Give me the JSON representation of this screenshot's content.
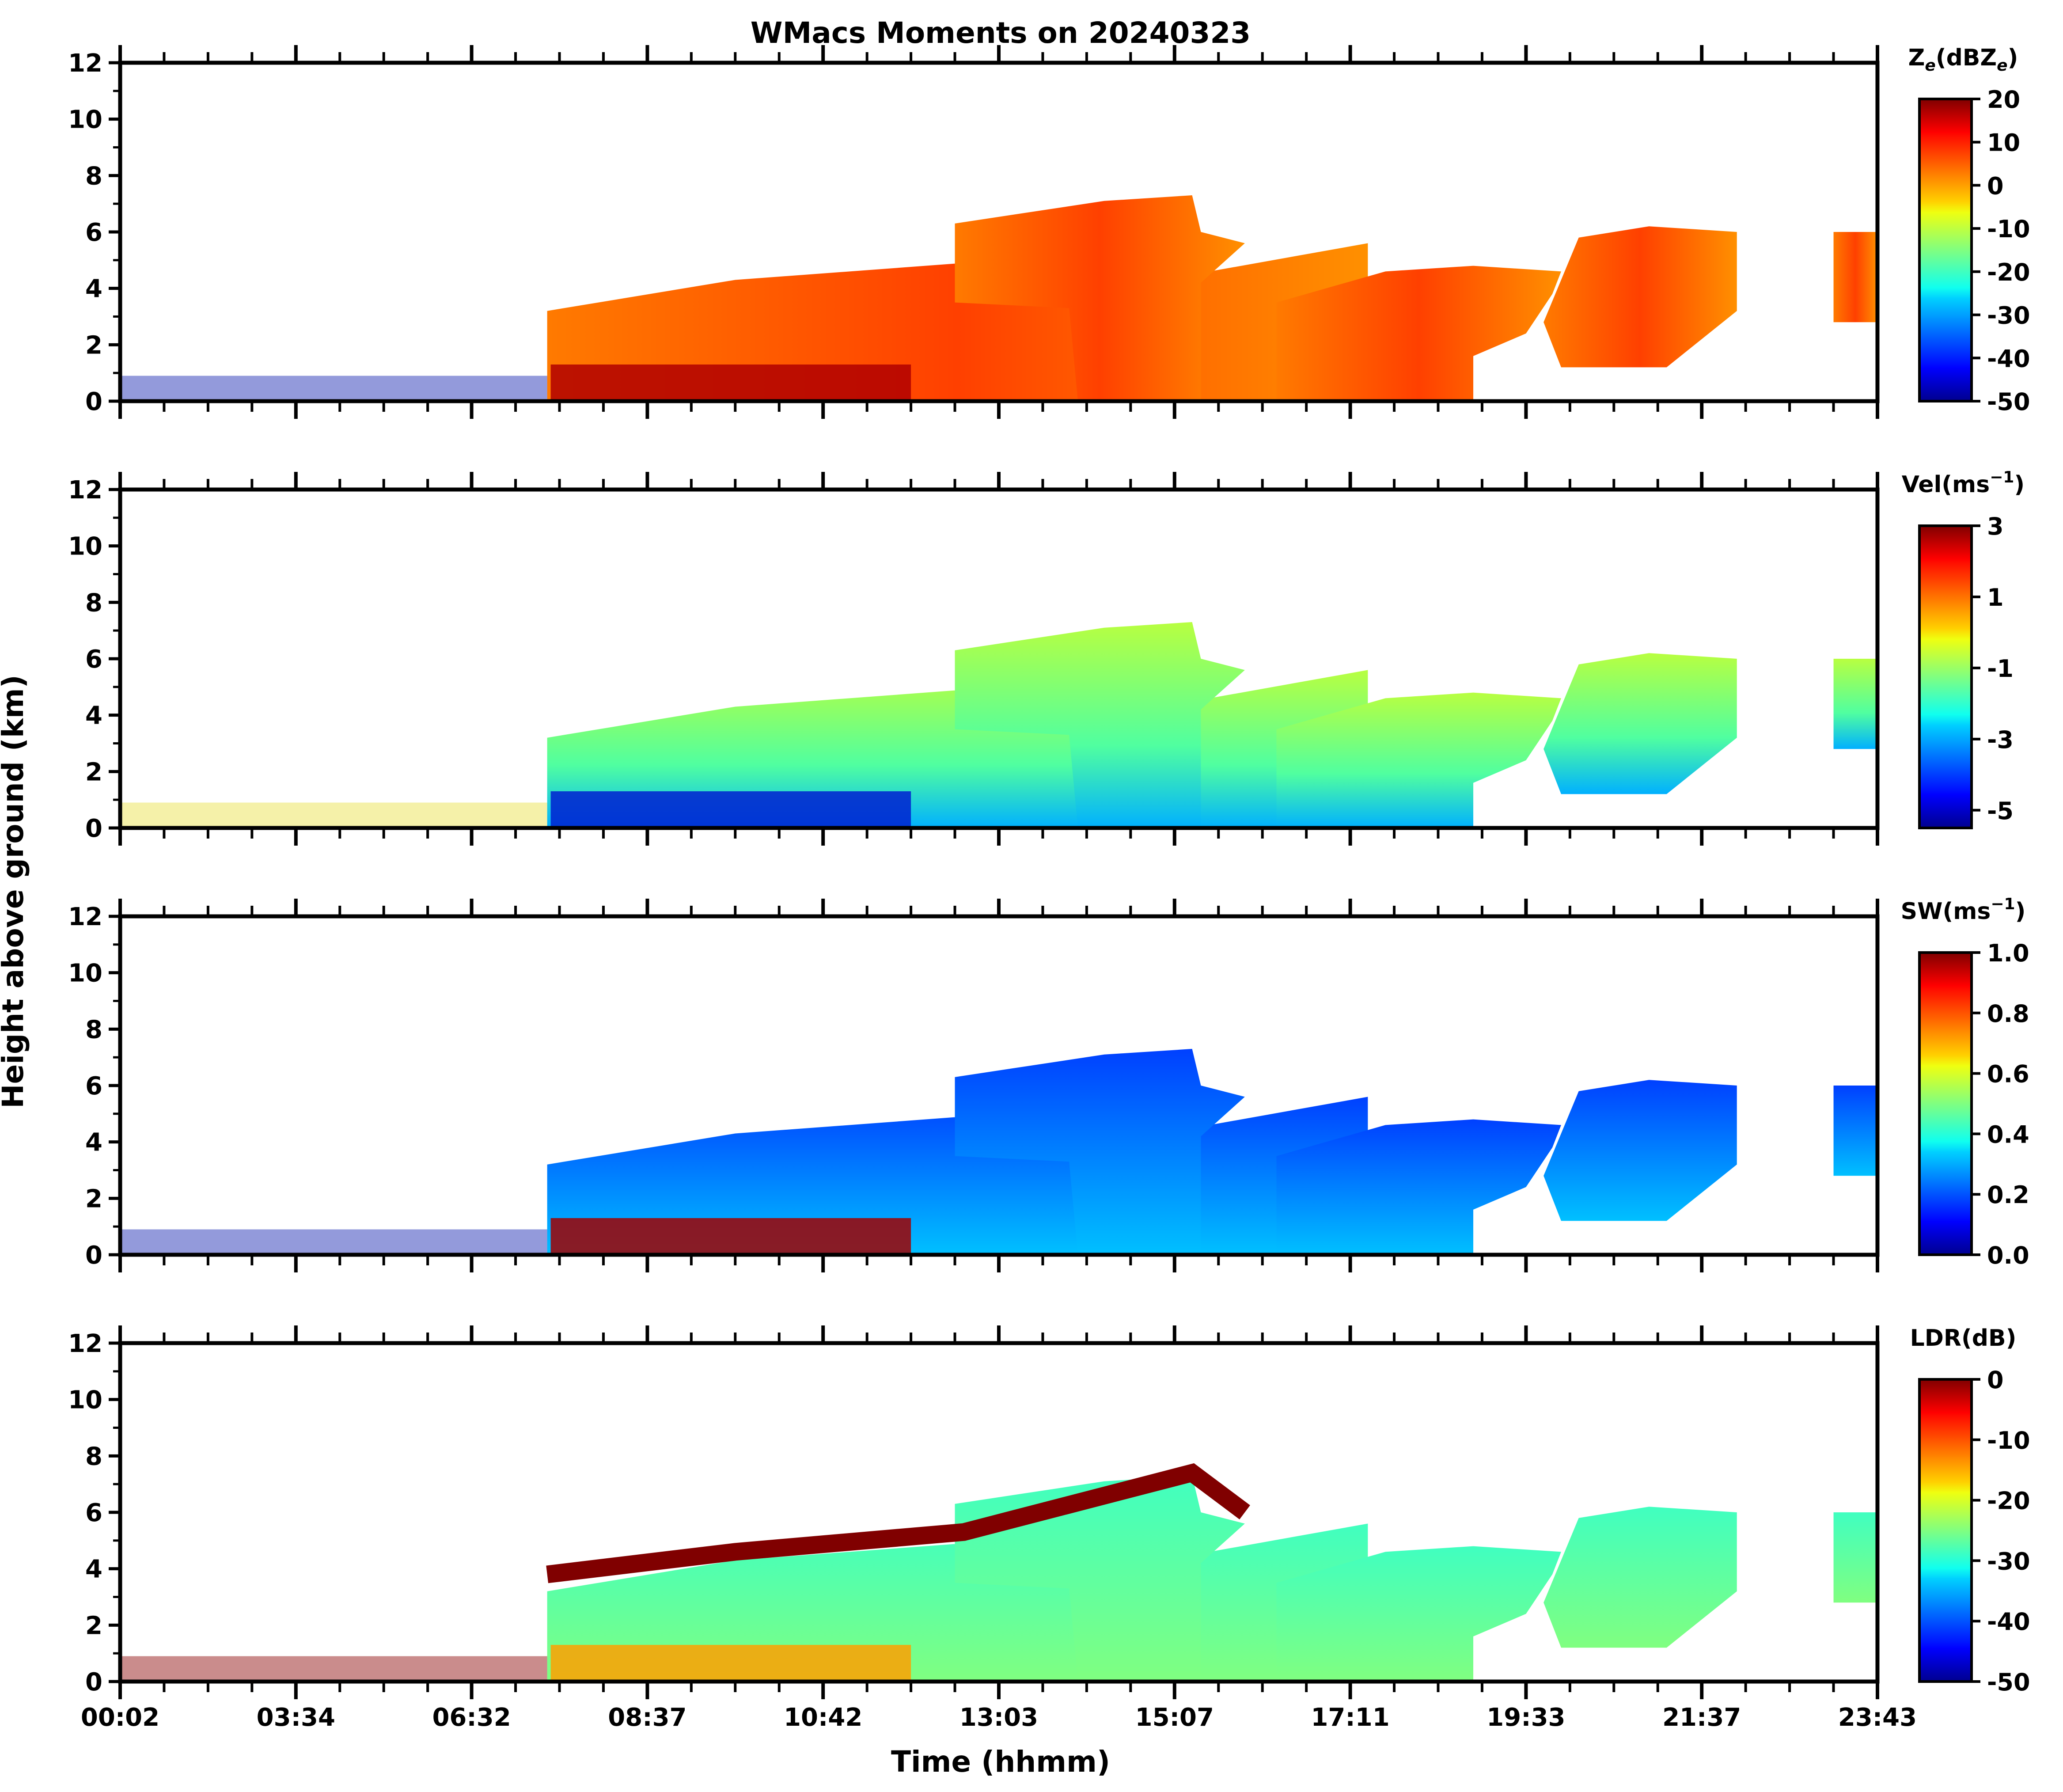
{
  "chart_data": {
    "type": "heatmap",
    "title": "WMacs Moments on 20240323",
    "xlabel": "Time (hhmm)",
    "ylabel": "Height above ground (km)",
    "x_tick_labels": [
      "00:02",
      "03:34",
      "06:32",
      "08:37",
      "10:42",
      "13:03",
      "15:07",
      "17:11",
      "19:33",
      "21:37",
      "23:43"
    ],
    "ylim": [
      0,
      12
    ],
    "y_ticks": [
      0,
      2,
      4,
      6,
      8,
      10,
      12
    ],
    "panels": [
      {
        "name": "reflectivity",
        "colorbar_label_main": "Z",
        "colorbar_label_sub": "e",
        "colorbar_label_paren": "(dBZ",
        "colorbar_label_sub2": "e",
        "colorbar_label_close": ")",
        "cbar_range": [
          -50,
          20
        ],
        "cbar_ticks": [
          "20",
          "10",
          "0",
          "-10",
          "-20",
          "-30",
          "-40",
          "-50"
        ],
        "cbar_tick_values": [
          20,
          10,
          0,
          -10,
          -20,
          -30,
          -40,
          -50
        ]
      },
      {
        "name": "velocity",
        "colorbar_label_main": "Vel(ms",
        "colorbar_label_sup": "−1",
        "colorbar_label_close": ")",
        "cbar_range": [
          -5.5,
          3
        ],
        "cbar_ticks": [
          "3",
          "1",
          "-1",
          "-3",
          "-5"
        ],
        "cbar_tick_values": [
          3,
          1,
          -1,
          -3,
          -5
        ]
      },
      {
        "name": "spectrum_width",
        "colorbar_label_main": "SW(ms",
        "colorbar_label_sup": "−1",
        "colorbar_label_close": ")",
        "cbar_range": [
          0,
          1
        ],
        "cbar_ticks": [
          "1.0",
          "0.8",
          "0.6",
          "0.4",
          "0.2",
          "0.0"
        ],
        "cbar_tick_values": [
          1.0,
          0.8,
          0.6,
          0.4,
          0.2,
          0.0
        ]
      },
      {
        "name": "ldr",
        "colorbar_label_main": "LDR(dB)",
        "cbar_range": [
          -50,
          0
        ],
        "cbar_ticks": [
          "0",
          "-10",
          "-20",
          "-30",
          "-40",
          "-50"
        ],
        "cbar_tick_values": [
          0,
          -10,
          -20,
          -30,
          -40,
          -50
        ]
      }
    ],
    "colormap": "jet"
  }
}
